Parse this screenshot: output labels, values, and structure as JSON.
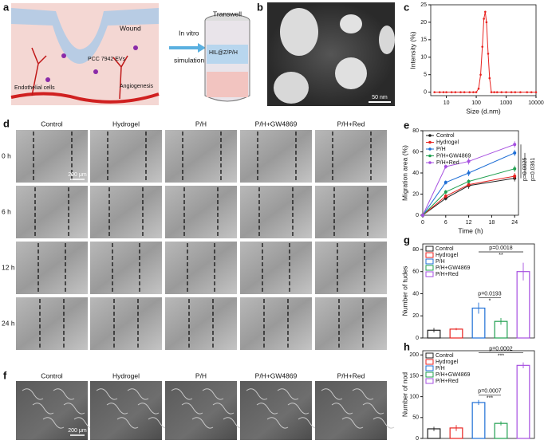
{
  "panel_labels": [
    "a",
    "b",
    "c",
    "d",
    "e",
    "f",
    "g",
    "h"
  ],
  "schematic": {
    "wound": "Wound",
    "evs": "PCC 7942 EVs",
    "cells": "Endothelial cells",
    "angiogenesis": "Angiogenesis",
    "arrow_top": "In vitro",
    "arrow_bottom": "simulation",
    "transwell": "Transwell",
    "hydrogel": "HIL@Z/P/H"
  },
  "tem": {
    "scale": "50 nm"
  },
  "migration_images": {
    "columns": [
      "Control",
      "Hydrogel",
      "P/H",
      "P/H+GW4869",
      "P/H+Red"
    ],
    "rows": [
      "0 h",
      "6 h",
      "12 h",
      "24 h"
    ],
    "scale": "200 μm"
  },
  "tube_images": {
    "columns": [
      "Control",
      "Hydrogel",
      "P/H",
      "P/H+GW4869",
      "P/H+Red"
    ],
    "scale": "200 μm"
  },
  "chart_data": [
    {
      "type": "line",
      "xscale": "log",
      "xlabel": "Size (d.nm)",
      "ylabel": "Intensity (%)",
      "color": "#e8221f",
      "x": [
        4,
        6,
        8,
        10,
        15,
        20,
        30,
        40,
        60,
        80,
        100,
        120,
        140,
        160,
        180,
        200,
        220,
        250,
        280,
        320,
        400,
        500,
        700,
        1000,
        1500,
        2000,
        3000,
        5000,
        7000,
        10000
      ],
      "values": [
        0,
        0,
        0,
        0,
        0,
        0,
        0,
        0,
        0,
        0,
        0,
        1,
        5,
        13,
        21,
        23,
        20,
        11,
        4,
        0,
        0,
        0,
        0,
        0,
        0,
        0,
        0,
        0,
        0,
        0
      ],
      "xlim": [
        3,
        10000
      ],
      "xticks": [
        10,
        100,
        1000,
        10000
      ],
      "ylim": [
        -1,
        25
      ],
      "yticks": [
        0,
        5,
        10,
        15,
        20,
        25
      ]
    },
    {
      "type": "line",
      "xlabel": "Time (h)",
      "ylabel": "Migration area (%)",
      "x": [
        0,
        6,
        12,
        24
      ],
      "series": [
        {
          "name": "Control",
          "color": "#222222",
          "values": [
            0,
            16,
            28,
            35
          ],
          "errors": [
            0,
            2,
            3,
            3
          ]
        },
        {
          "name": "Hydrogel",
          "color": "#e8221f",
          "values": [
            0,
            18,
            29,
            37
          ],
          "errors": [
            0,
            2,
            2,
            3
          ]
        },
        {
          "name": "P/H",
          "color": "#1f6fd6",
          "values": [
            0,
            31,
            40,
            59
          ],
          "errors": [
            0,
            2,
            3,
            3
          ]
        },
        {
          "name": "P/H+GW4869",
          "color": "#20a050",
          "values": [
            0,
            22,
            32,
            44
          ],
          "errors": [
            0,
            2,
            2,
            3
          ]
        },
        {
          "name": "P/H+Red",
          "color": "#a64fe0",
          "values": [
            0,
            46,
            51,
            67
          ],
          "errors": [
            0,
            2,
            3,
            3
          ]
        }
      ],
      "xlim": [
        0,
        25
      ],
      "xticks": [
        0,
        6,
        12,
        18,
        24
      ],
      "ylim": [
        0,
        80
      ],
      "yticks": [
        0,
        20,
        40,
        60,
        80
      ],
      "annotations": [
        "p=0.0025",
        "p=0.0361"
      ]
    },
    {
      "type": "bar",
      "ylabel": "Number of tudes",
      "categories": [
        "Control",
        "Hydrogel",
        "P/H",
        "P/H+GW4869",
        "P/H+Red"
      ],
      "colors": [
        "#222222",
        "#e8221f",
        "#1f6fd6",
        "#20a050",
        "#a64fe0"
      ],
      "values": [
        7,
        8,
        27,
        15,
        60
      ],
      "errors": [
        2,
        1,
        5,
        3,
        8
      ],
      "ylim": [
        0,
        85
      ],
      "yticks": [
        0,
        20,
        40,
        60,
        80
      ],
      "comparisons": [
        {
          "p": "p=0.0193",
          "stars": "*"
        },
        {
          "p": "p=0.0018",
          "stars": "**"
        }
      ]
    },
    {
      "type": "bar",
      "ylabel": "Number of nod",
      "categories": [
        "Control",
        "Hydrogel",
        "P/H",
        "P/H+GW4869",
        "P/H+Red"
      ],
      "colors": [
        "#222222",
        "#e8221f",
        "#1f6fd6",
        "#20a050",
        "#a64fe0"
      ],
      "values": [
        23,
        25,
        86,
        36,
        175
      ],
      "errors": [
        5,
        7,
        6,
        5,
        7
      ],
      "ylim": [
        0,
        210
      ],
      "yticks": [
        0,
        50,
        100,
        150,
        200
      ],
      "comparisons": [
        {
          "p": "p=0.0007",
          "stars": "***"
        },
        {
          "p": "p=0.0002",
          "stars": "***"
        }
      ]
    }
  ]
}
